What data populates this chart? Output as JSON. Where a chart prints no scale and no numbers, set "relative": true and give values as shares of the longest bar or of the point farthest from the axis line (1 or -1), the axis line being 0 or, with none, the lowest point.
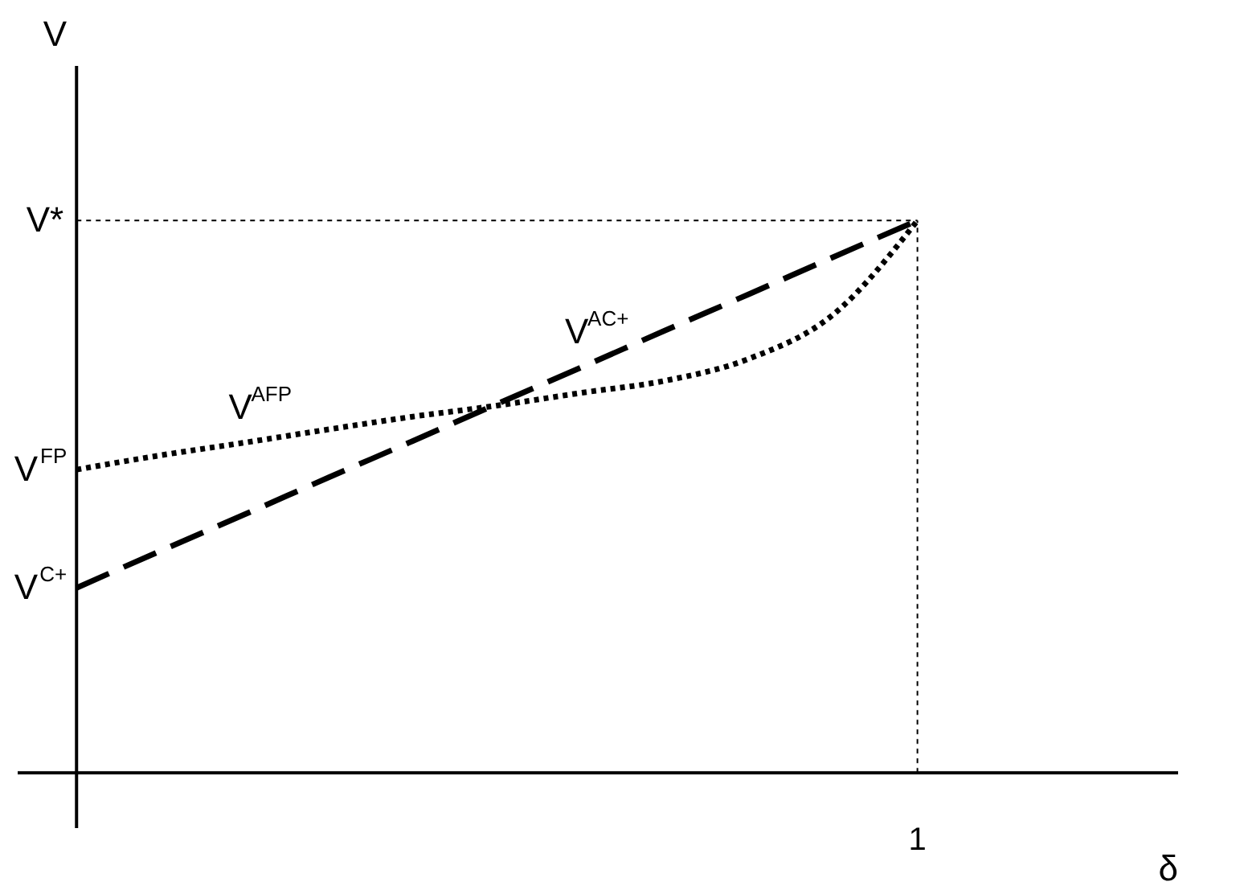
{
  "chart_data": {
    "type": "line",
    "relative": true,
    "ylabel": "V",
    "categories": [
      null,
      null,
      null,
      null,
      null,
      null,
      null,
      null,
      null,
      null,
      null
    ],
    "grid": false,
    "marker": "none",
    "series": [
      {
        "name": "V$^{AFP}$",
        "color": "#000000",
        "line_style": "dotted",
        "values": [
          0.549,
          0.575,
          0.598,
          0.622,
          0.645,
          0.665,
          0.688,
          0.71,
          0.75,
          0.83,
          1
        ]
      },
      {
        "name": "V$^{AC+}$",
        "color": "#000000",
        "line_style": "dashed",
        "values": [
          0.335,
          0.402,
          0.468,
          0.535,
          0.601,
          0.668,
          0.734,
          0.801,
          0.867,
          0.934,
          1
        ]
      }
    ],
    "ref_lines": [
      {
        "axis": "y",
        "value": 1,
        "label": "V*",
        "line_style": "dotted",
        "color": "#000000"
      },
      {
        "axis": "x",
        "label": "1",
        "line_style": "dotted",
        "color": "#000000"
      }
    ],
    "annotations": [
      "V$^{FP}$",
      "V$^{C+}$",
      "δ"
    ]
  }
}
